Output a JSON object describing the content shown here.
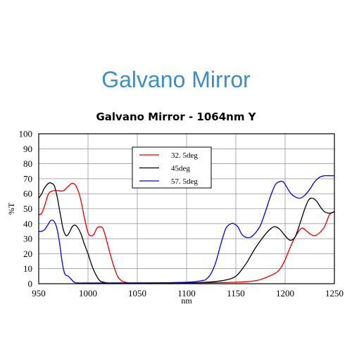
{
  "page_heading": "Galvano Mirror",
  "chart_data": {
    "type": "line",
    "title": "Galvano Mirror - 1064nm Y",
    "xlabel": "nm",
    "ylabel": "%T",
    "xlim": [
      950,
      1250
    ],
    "ylim": [
      0,
      100
    ],
    "xticks": [
      950,
      1000,
      1050,
      1100,
      1150,
      1200,
      1250
    ],
    "yticks": [
      0,
      10,
      20,
      30,
      40,
      50,
      60,
      70,
      80,
      90,
      100
    ],
    "grid": true,
    "legend_position": "top-center",
    "series": [
      {
        "name": "32. 5deg",
        "color": "#e00000",
        "x": [
          950,
          953,
          956,
          960,
          965,
          970,
          975,
          980,
          984,
          987,
          990,
          993,
          996,
          1000,
          1003,
          1006,
          1009,
          1012,
          1015,
          1018,
          1022,
          1026,
          1030,
          1034,
          1038,
          1042,
          1050,
          1100,
          1150,
          1170,
          1180,
          1190,
          1195,
          1200,
          1205,
          1210,
          1215,
          1218,
          1222,
          1226,
          1230,
          1235,
          1240,
          1245,
          1250
        ],
        "y": [
          46,
          47,
          52,
          60,
          62,
          62,
          62,
          65,
          67,
          66,
          62,
          55,
          45,
          34,
          32,
          33,
          37,
          38,
          37,
          31,
          21,
          12,
          5,
          2,
          1,
          0.5,
          0.5,
          0.5,
          1,
          2,
          4,
          7,
          10,
          16,
          24,
          31,
          36,
          37,
          35,
          33,
          32,
          34,
          38,
          46,
          48
        ]
      },
      {
        "name": "45deg",
        "color": "#000000",
        "x": [
          950,
          953,
          956,
          960,
          963,
          966,
          969,
          972,
          975,
          978,
          981,
          984,
          987,
          990,
          993,
          996,
          1000,
          1004,
          1008,
          1012,
          1016,
          1020,
          1025,
          1030,
          1050,
          1100,
          1120,
          1130,
          1140,
          1150,
          1160,
          1170,
          1180,
          1186,
          1190,
          1195,
          1200,
          1205,
          1210,
          1215,
          1220,
          1224,
          1228,
          1232,
          1236,
          1240,
          1245,
          1250
        ],
        "y": [
          57,
          60,
          64,
          67,
          67,
          65,
          57,
          46,
          36,
          32,
          34,
          38,
          39,
          37,
          33,
          27,
          20,
          12,
          6,
          2,
          1,
          0.5,
          0.5,
          0.5,
          0.5,
          0.5,
          1,
          1.5,
          2.5,
          5,
          13,
          24,
          33,
          37,
          38,
          36,
          32,
          29,
          31,
          40,
          50,
          56,
          57,
          55,
          51,
          48,
          47,
          48
        ]
      },
      {
        "name": "57. 5deg",
        "color": "#0000dd",
        "x": [
          950,
          953,
          956,
          959,
          962,
          965,
          968,
          971,
          973,
          975,
          977,
          980,
          983,
          986,
          990,
          995,
          1000,
          1010,
          1050,
          1100,
          1115,
          1120,
          1125,
          1130,
          1135,
          1140,
          1145,
          1148,
          1152,
          1156,
          1160,
          1165,
          1170,
          1175,
          1180,
          1185,
          1190,
          1194,
          1198,
          1202,
          1206,
          1210,
          1215,
          1220,
          1225,
          1230,
          1235,
          1240,
          1245,
          1250
        ],
        "y": [
          35,
          35,
          36,
          39,
          42,
          42,
          38,
          28,
          18,
          10,
          6,
          5,
          3,
          1,
          0.5,
          0.5,
          0.5,
          0.5,
          0.5,
          1,
          2,
          3,
          7,
          15,
          27,
          37,
          40,
          40,
          38,
          33,
          31,
          31,
          34,
          39,
          48,
          58,
          66,
          68,
          68,
          64,
          60,
          58,
          57,
          59,
          63,
          68,
          71,
          72,
          72,
          72
        ]
      }
    ]
  }
}
